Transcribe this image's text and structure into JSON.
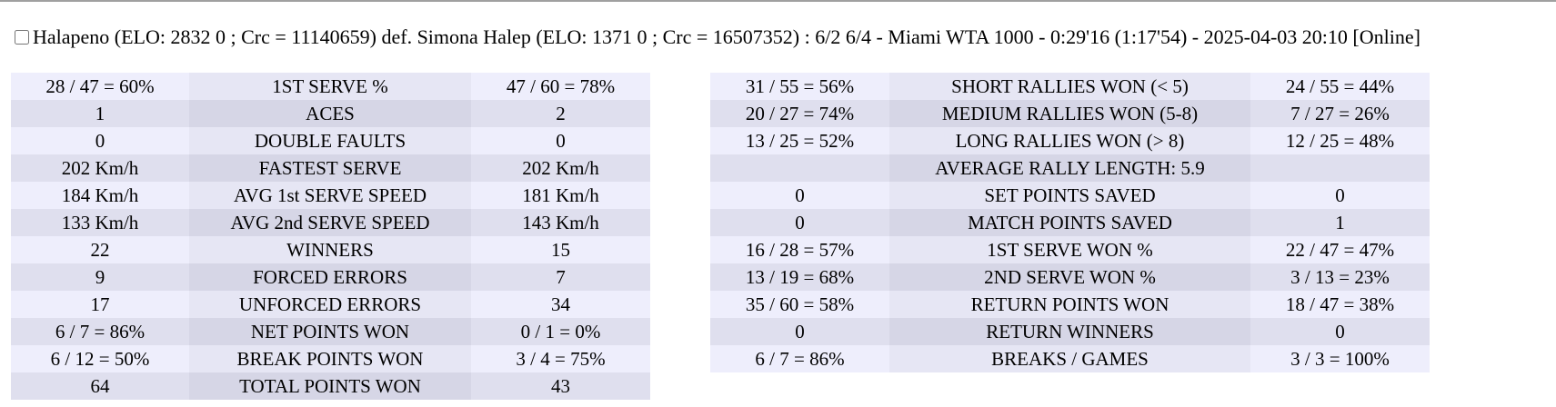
{
  "header": {
    "title": "Halapeno (ELO: 2832 0 ; Crc = 11140659) def. Simona Halep (ELO: 1371 0 ; Crc = 16507352) : 6/2 6/4 - Miami WTA 1000 - 0:29'16 (1:17'54) - 2025-04-03 20:10 [Online]"
  },
  "tables": [
    {
      "rows": [
        [
          "28 / 47 = 60%",
          "1ST SERVE %",
          "47 / 60 = 78%"
        ],
        [
          "1",
          "ACES",
          "2"
        ],
        [
          "0",
          "DOUBLE FAULTS",
          "0"
        ],
        [
          "202 Km/h",
          "FASTEST SERVE",
          "202 Km/h"
        ],
        [
          "184 Km/h",
          "AVG 1st SERVE SPEED",
          "181 Km/h"
        ],
        [
          "133 Km/h",
          "AVG 2nd SERVE SPEED",
          "143 Km/h"
        ],
        [
          "22",
          "WINNERS",
          "15"
        ],
        [
          "9",
          "FORCED ERRORS",
          "7"
        ],
        [
          "17",
          "UNFORCED ERRORS",
          "34"
        ],
        [
          "6 / 7 = 86%",
          "NET POINTS WON",
          "0 / 1 = 0%"
        ],
        [
          "6 / 12 = 50%",
          "BREAK POINTS WON",
          "3 / 4 = 75%"
        ],
        [
          "64",
          "TOTAL POINTS WON",
          "43"
        ]
      ]
    },
    {
      "rows": [
        [
          "31 / 55 = 56%",
          "SHORT RALLIES WON (< 5)",
          "24 / 55 = 44%"
        ],
        [
          "20 / 27 = 74%",
          "MEDIUM RALLIES WON (5-8)",
          "7 / 27 = 26%"
        ],
        [
          "13 / 25 = 52%",
          "LONG RALLIES WON (> 8)",
          "12 / 25 = 48%"
        ],
        [
          null,
          "AVERAGE RALLY LENGTH: 5.9",
          null
        ],
        [
          "0",
          "SET POINTS SAVED",
          "0"
        ],
        [
          "0",
          "MATCH POINTS SAVED",
          "1"
        ],
        [
          "16 / 28 = 57%",
          "1ST SERVE WON %",
          "22 / 47 = 47%"
        ],
        [
          "13 / 19 = 68%",
          "2ND SERVE WON %",
          "3 / 13 = 23%"
        ],
        [
          "35 / 60 = 58%",
          "RETURN POINTS WON",
          "18 / 47 = 38%"
        ],
        [
          "0",
          "RETURN WINNERS",
          "0"
        ],
        [
          "6 / 7 = 86%",
          "BREAKS / GAMES",
          "3 / 3 = 100%"
        ]
      ]
    }
  ]
}
